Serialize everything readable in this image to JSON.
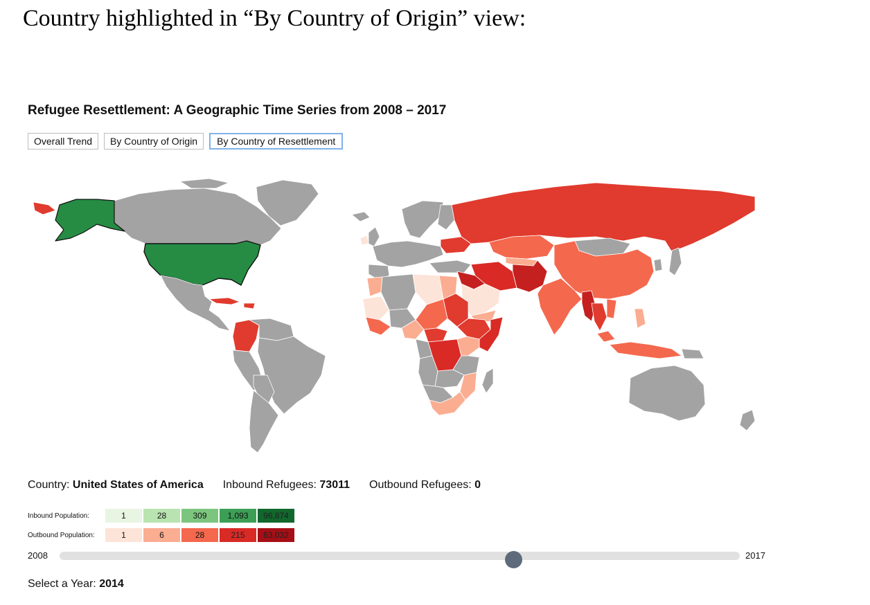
{
  "caption": "Country highlighted in “By Country of Origin” view:",
  "app": {
    "title": "Refugee Resettlement: A Geographic Time Series from 2008 – 2017",
    "tabs": [
      {
        "label": "Overall Trend",
        "active": false
      },
      {
        "label": "By Country of Origin",
        "active": false
      },
      {
        "label": "By Country of Resettlement",
        "active": true
      }
    ]
  },
  "info": {
    "country_label": "Country:",
    "country_value": "United States of America",
    "inbound_label": "Inbound Refugees:",
    "inbound_value": "73011",
    "outbound_label": "Outbound Refugees:",
    "outbound_value": "0"
  },
  "legend": {
    "inbound": {
      "label": "Inbound Population:",
      "values": [
        "1",
        "28",
        "309",
        "1,093",
        "96,874"
      ],
      "colors": [
        "#e8f5e2",
        "#b9e3b0",
        "#7cc57e",
        "#3d9e55",
        "#11672c"
      ]
    },
    "outbound": {
      "label": "Outbound Population:",
      "values": [
        "1",
        "6",
        "28",
        "215",
        "63,032"
      ],
      "colors": [
        "#fde4d8",
        "#fbad91",
        "#f4684e",
        "#d92a26",
        "#a50f15"
      ]
    }
  },
  "slider": {
    "min_label": "2008",
    "max_label": "2017",
    "min": 2008,
    "max": 2017,
    "value": 2014
  },
  "year": {
    "label": "Select a Year:",
    "value": "2014"
  },
  "map_colors": {
    "ocean": "#ffffff",
    "no_data": "#a3a3a3",
    "border": "#ffffff",
    "highlight": "#268c44",
    "highlight_border": "#111111"
  }
}
